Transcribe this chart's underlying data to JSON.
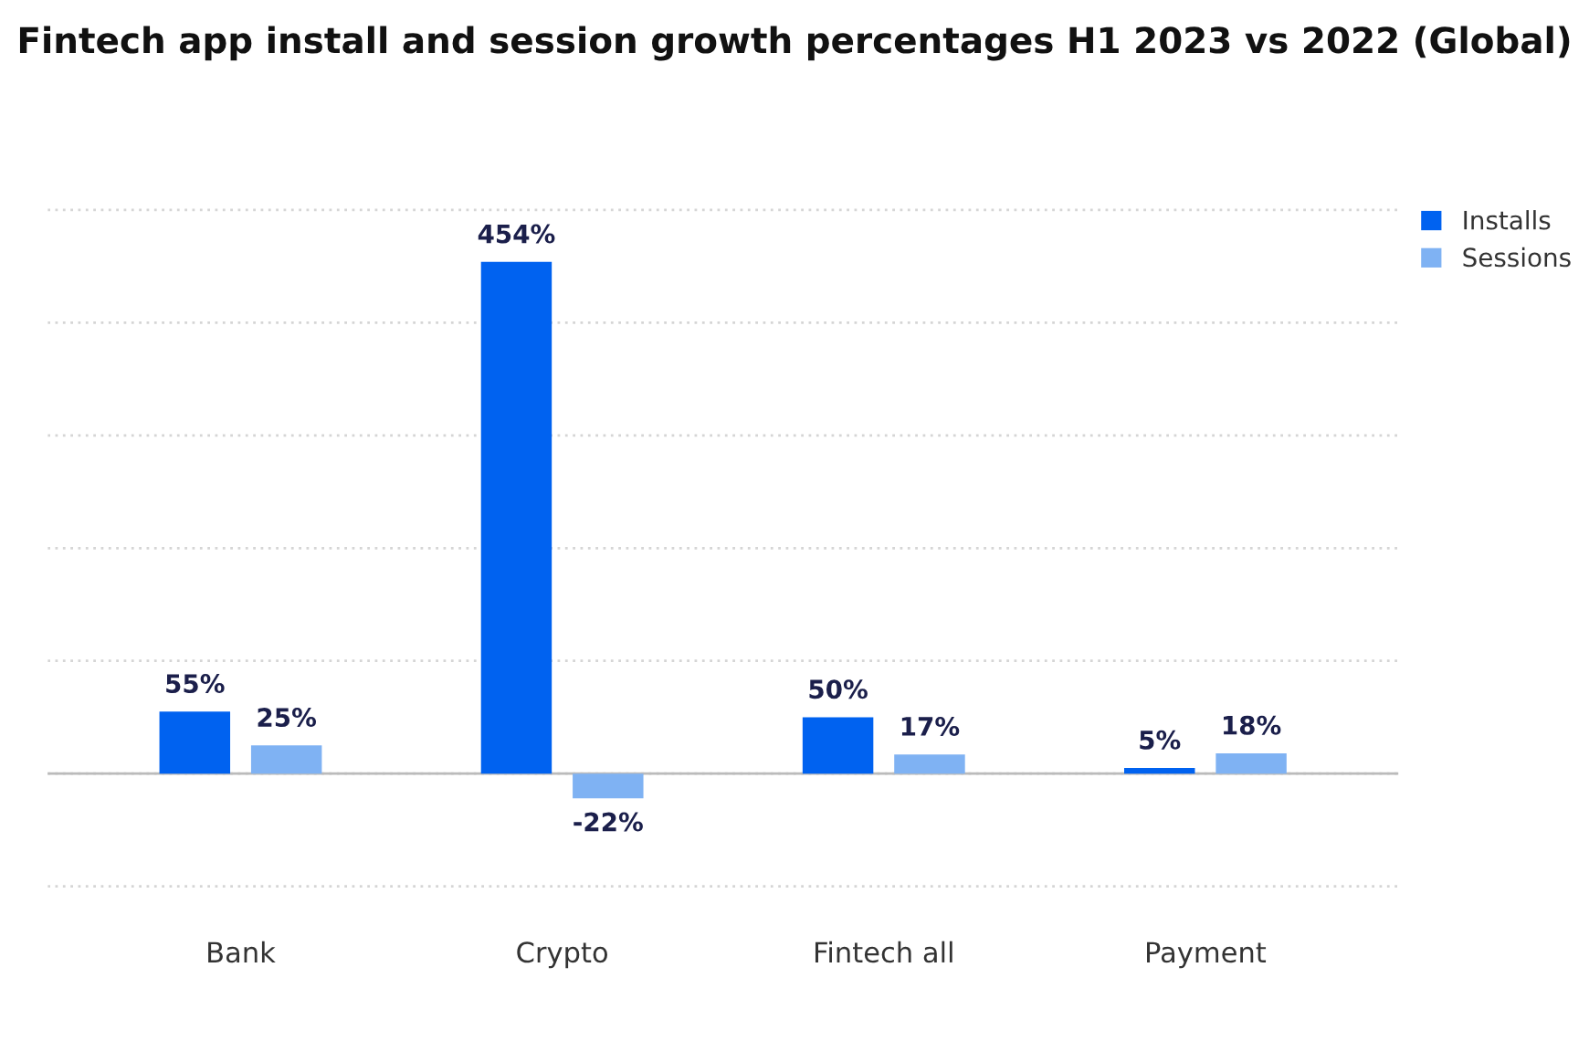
{
  "chart_data": {
    "type": "bar",
    "title": "Fintech app install and session growth percentages H1 2023 vs 2022 (Global)",
    "categories": [
      "Bank",
      "Crypto",
      "Fintech all",
      "Payment"
    ],
    "series": [
      {
        "name": "Installs",
        "color": "#0062f0",
        "values": [
          55,
          454,
          50,
          5
        ],
        "value_labels": [
          "55%",
          "454%",
          "50%",
          "5%"
        ]
      },
      {
        "name": "Sessions",
        "color": "#7fb2f3",
        "values": [
          25,
          -22,
          17,
          18
        ],
        "value_labels": [
          "25%",
          "-22%",
          "17%",
          "18%"
        ]
      }
    ],
    "tick_labels": "x",
    "grid": "y",
    "legend": "top right"
  }
}
